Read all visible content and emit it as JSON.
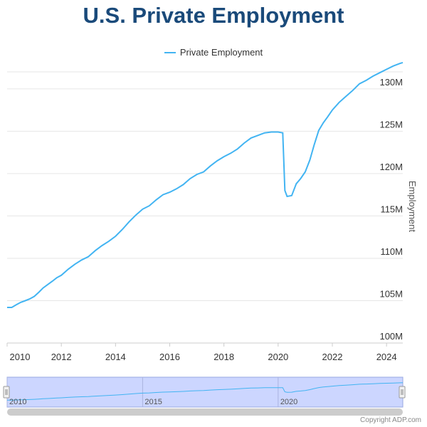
{
  "chart_data": {
    "type": "line",
    "title": "U.S. Private Employment",
    "ylabel": "Employment",
    "xlabel": "",
    "xlim": [
      2010.0,
      2024.6
    ],
    "ylim": [
      100,
      132
    ],
    "x_ticks": [
      "2010",
      "2012",
      "2014",
      "2016",
      "2018",
      "2020",
      "2022",
      "2024"
    ],
    "y_ticks": [
      "100M",
      "105M",
      "110M",
      "115M",
      "120M",
      "125M",
      "130M"
    ],
    "grid": true,
    "legend_position": "top-center",
    "series": [
      {
        "name": "Private Employment",
        "color": "#42b4f2",
        "x": [
          2010.0,
          2010.17,
          2010.33,
          2010.5,
          2010.67,
          2010.83,
          2011.0,
          2011.17,
          2011.33,
          2011.5,
          2011.67,
          2011.83,
          2012.0,
          2012.25,
          2012.5,
          2012.75,
          2013.0,
          2013.25,
          2013.5,
          2013.75,
          2014.0,
          2014.25,
          2014.5,
          2014.75,
          2015.0,
          2015.25,
          2015.5,
          2015.75,
          2016.0,
          2016.25,
          2016.5,
          2016.75,
          2017.0,
          2017.25,
          2017.5,
          2017.75,
          2018.0,
          2018.25,
          2018.5,
          2018.75,
          2019.0,
          2019.25,
          2019.5,
          2019.75,
          2020.0,
          2020.17,
          2020.25,
          2020.33,
          2020.5,
          2020.67,
          2020.83,
          2021.0,
          2021.17,
          2021.33,
          2021.5,
          2021.67,
          2021.83,
          2022.0,
          2022.25,
          2022.5,
          2022.75,
          2023.0,
          2023.25,
          2023.5,
          2023.75,
          2024.0,
          2024.25,
          2024.5,
          2024.6
        ],
        "values": [
          104.2,
          104.2,
          104.5,
          104.8,
          105.0,
          105.2,
          105.5,
          106.0,
          106.5,
          106.9,
          107.3,
          107.7,
          108.0,
          108.7,
          109.3,
          109.8,
          110.2,
          110.9,
          111.5,
          112.0,
          112.6,
          113.4,
          114.3,
          115.1,
          115.8,
          116.2,
          116.9,
          117.5,
          117.8,
          118.2,
          118.7,
          119.4,
          119.9,
          120.2,
          120.9,
          121.5,
          122.0,
          122.4,
          122.9,
          123.6,
          124.2,
          124.5,
          124.8,
          124.9,
          124.9,
          124.8,
          118.0,
          117.3,
          117.4,
          118.8,
          119.4,
          120.2,
          121.6,
          123.4,
          125.1,
          126.0,
          126.7,
          127.5,
          128.4,
          129.1,
          129.8,
          130.6,
          131.0,
          131.5,
          131.9,
          132.3,
          132.7,
          133.0,
          133.1
        ]
      }
    ]
  },
  "navigator": {
    "labels": [
      "2010",
      "2015",
      "2020"
    ]
  },
  "footer": {
    "copyright": "Copyright ADP.com"
  }
}
